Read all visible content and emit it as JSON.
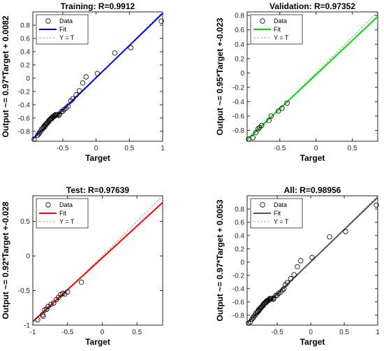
{
  "chart_data": [
    {
      "type": "scatter",
      "title": "Training: R=0.9912",
      "xlabel": "Target",
      "ylabel": "Output ~= 0.97*Target + 0.0082",
      "xlim": [
        -0.95,
        1.0
      ],
      "ylim": [
        -0.95,
        1.0
      ],
      "xticks": [
        -0.5,
        0,
        0.5,
        1
      ],
      "xtick_labels": [
        "-0.5",
        "0",
        "0.5",
        "1"
      ],
      "yticks": [
        -0.8,
        -0.6,
        -0.4,
        -0.2,
        0,
        0.2,
        0.4,
        0.6,
        0.8
      ],
      "ytick_labels": [
        "-0.8",
        "-0.6",
        "-0.4",
        "-0.2",
        "0",
        "0.2",
        "0.4",
        "0.6",
        "0.8"
      ],
      "fit": {
        "slope": 0.97,
        "intercept": 0.0082,
        "color": "#0000ff"
      },
      "identity_line": true,
      "legend": {
        "placement": "top-left",
        "entries": [
          "Data",
          "Fit",
          "Y = T"
        ]
      },
      "points": [
        [
          -0.93,
          -0.92
        ],
        [
          -0.88,
          -0.86
        ],
        [
          -0.86,
          -0.84
        ],
        [
          -0.85,
          -0.82
        ],
        [
          -0.83,
          -0.8
        ],
        [
          -0.82,
          -0.77
        ],
        [
          -0.8,
          -0.76
        ],
        [
          -0.79,
          -0.74
        ],
        [
          -0.78,
          -0.72
        ],
        [
          -0.77,
          -0.73
        ],
        [
          -0.76,
          -0.7
        ],
        [
          -0.75,
          -0.69
        ],
        [
          -0.74,
          -0.68
        ],
        [
          -0.73,
          -0.67
        ],
        [
          -0.72,
          -0.66
        ],
        [
          -0.71,
          -0.64
        ],
        [
          -0.7,
          -0.63
        ],
        [
          -0.69,
          -0.62
        ],
        [
          -0.68,
          -0.61
        ],
        [
          -0.67,
          -0.6
        ],
        [
          -0.66,
          -0.6
        ],
        [
          -0.65,
          -0.58
        ],
        [
          -0.64,
          -0.58
        ],
        [
          -0.63,
          -0.57
        ],
        [
          -0.62,
          -0.56
        ],
        [
          -0.61,
          -0.55
        ],
        [
          -0.6,
          -0.55
        ],
        [
          -0.58,
          -0.55
        ],
        [
          -0.56,
          -0.56
        ],
        [
          -0.55,
          -0.54
        ],
        [
          -0.52,
          -0.5
        ],
        [
          -0.5,
          -0.5
        ],
        [
          -0.48,
          -0.47
        ],
        [
          -0.45,
          -0.45
        ],
        [
          -0.42,
          -0.42
        ],
        [
          -0.38,
          -0.34
        ],
        [
          -0.35,
          -0.31
        ],
        [
          -0.3,
          -0.25
        ],
        [
          -0.25,
          -0.19
        ],
        [
          -0.2,
          -0.07
        ],
        [
          -0.15,
          0.02
        ],
        [
          0.02,
          0.07
        ],
        [
          0.28,
          0.38
        ],
        [
          0.52,
          0.46
        ],
        [
          0.98,
          0.86
        ]
      ]
    },
    {
      "type": "scatter",
      "title": "Validation: R=0.97352",
      "xlabel": "Target",
      "ylabel": "Output ~= 0.95*Target +-0.023",
      "xlim": [
        -0.95,
        0.85
      ],
      "ylim": [
        -0.95,
        0.85
      ],
      "xticks": [
        -0.5,
        0,
        0.5
      ],
      "xtick_labels": [
        "-0.5",
        "0",
        "0.5"
      ],
      "yticks": [
        -0.8,
        -0.6,
        -0.4,
        -0.2,
        0,
        0.2,
        0.4,
        0.6,
        0.8
      ],
      "ytick_labels": [
        "-0.8",
        "-0.6",
        "-0.4",
        "-0.2",
        "0",
        "0.2",
        "0.4",
        "0.6",
        "0.8"
      ],
      "fit": {
        "slope": 0.95,
        "intercept": -0.023,
        "color": "#00e000"
      },
      "identity_line": true,
      "legend": {
        "placement": "top-left",
        "entries": [
          "Data",
          "Fit",
          "Y = T"
        ]
      },
      "points": [
        [
          -0.93,
          -0.92
        ],
        [
          -0.87,
          -0.9
        ],
        [
          -0.83,
          -0.83
        ],
        [
          -0.8,
          -0.78
        ],
        [
          -0.78,
          -0.76
        ],
        [
          -0.75,
          -0.73
        ],
        [
          -0.65,
          -0.66
        ],
        [
          -0.62,
          -0.6
        ],
        [
          -0.52,
          -0.53
        ],
        [
          -0.47,
          -0.49
        ],
        [
          -0.4,
          -0.42
        ]
      ]
    },
    {
      "type": "scatter",
      "title": "Test: R=0.97639",
      "xlabel": "Target",
      "ylabel": "Output ~= 0.92*Target +-0.028",
      "xlim": [
        -1.0,
        0.87
      ],
      "ylim": [
        -1.0,
        0.87
      ],
      "xticks": [
        -1,
        -0.5,
        0,
        0.5
      ],
      "xtick_labels": [
        "-1",
        "-0.5",
        "0",
        "0.5"
      ],
      "yticks": [
        -1,
        -0.5,
        0,
        0.5
      ],
      "ytick_labels": [
        "-1",
        "-0.5",
        "0",
        "0.5"
      ],
      "fit": {
        "slope": 0.92,
        "intercept": -0.028,
        "color": "#ff0000"
      },
      "identity_line": true,
      "legend": {
        "placement": "top-left",
        "entries": [
          "Data",
          "Fit",
          "Y = T"
        ]
      },
      "points": [
        [
          -0.93,
          -0.92
        ],
        [
          -0.86,
          -0.85
        ],
        [
          -0.85,
          -0.87
        ],
        [
          -0.83,
          -0.78
        ],
        [
          -0.8,
          -0.77
        ],
        [
          -0.78,
          -0.73
        ],
        [
          -0.74,
          -0.7
        ],
        [
          -0.7,
          -0.68
        ],
        [
          -0.66,
          -0.63
        ],
        [
          -0.63,
          -0.6
        ],
        [
          -0.6,
          -0.56
        ],
        [
          -0.57,
          -0.54
        ],
        [
          -0.54,
          -0.55
        ],
        [
          -0.5,
          -0.52
        ],
        [
          -0.3,
          -0.38
        ]
      ]
    },
    {
      "type": "scatter",
      "title": "All: R=0.98956",
      "xlabel": "Target",
      "ylabel": "Output ~= 0.97*Target + 0.0053",
      "xlim": [
        -0.95,
        1.0
      ],
      "ylim": [
        -0.95,
        1.0
      ],
      "xticks": [
        -0.5,
        0,
        0.5,
        1
      ],
      "xtick_labels": [
        "-0.5",
        "0",
        "0.5",
        "1"
      ],
      "yticks": [
        -0.8,
        -0.6,
        -0.4,
        -0.2,
        0,
        0.2,
        0.4,
        0.6,
        0.8
      ],
      "ytick_labels": [
        "-0.8",
        "-0.6",
        "-0.4",
        "-0.2",
        "0",
        "0.2",
        "0.4",
        "0.6",
        "0.8"
      ],
      "fit": {
        "slope": 0.97,
        "intercept": 0.0053,
        "color": "#555555"
      },
      "identity_line": true,
      "legend": {
        "placement": "top-left",
        "entries": [
          "Data",
          "Fit",
          "Y = T"
        ]
      },
      "points": [
        [
          -0.93,
          -0.92
        ],
        [
          -0.9,
          -0.9
        ],
        [
          -0.88,
          -0.86
        ],
        [
          -0.86,
          -0.84
        ],
        [
          -0.85,
          -0.82
        ],
        [
          -0.83,
          -0.8
        ],
        [
          -0.82,
          -0.77
        ],
        [
          -0.8,
          -0.76
        ],
        [
          -0.79,
          -0.74
        ],
        [
          -0.78,
          -0.72
        ],
        [
          -0.77,
          -0.73
        ],
        [
          -0.76,
          -0.7
        ],
        [
          -0.75,
          -0.69
        ],
        [
          -0.74,
          -0.68
        ],
        [
          -0.73,
          -0.67
        ],
        [
          -0.72,
          -0.66
        ],
        [
          -0.71,
          -0.64
        ],
        [
          -0.7,
          -0.63
        ],
        [
          -0.69,
          -0.62
        ],
        [
          -0.68,
          -0.61
        ],
        [
          -0.67,
          -0.6
        ],
        [
          -0.66,
          -0.6
        ],
        [
          -0.65,
          -0.58
        ],
        [
          -0.64,
          -0.58
        ],
        [
          -0.63,
          -0.57
        ],
        [
          -0.62,
          -0.56
        ],
        [
          -0.61,
          -0.55
        ],
        [
          -0.6,
          -0.55
        ],
        [
          -0.58,
          -0.55
        ],
        [
          -0.56,
          -0.56
        ],
        [
          -0.55,
          -0.54
        ],
        [
          -0.52,
          -0.5
        ],
        [
          -0.5,
          -0.5
        ],
        [
          -0.48,
          -0.47
        ],
        [
          -0.45,
          -0.45
        ],
        [
          -0.42,
          -0.42
        ],
        [
          -0.4,
          -0.4
        ],
        [
          -0.38,
          -0.34
        ],
        [
          -0.35,
          -0.31
        ],
        [
          -0.3,
          -0.25
        ],
        [
          -0.25,
          -0.19
        ],
        [
          -0.2,
          -0.07
        ],
        [
          -0.15,
          0.02
        ],
        [
          0.02,
          0.07
        ],
        [
          0.28,
          0.38
        ],
        [
          0.52,
          0.46
        ],
        [
          0.98,
          0.86
        ]
      ]
    }
  ]
}
